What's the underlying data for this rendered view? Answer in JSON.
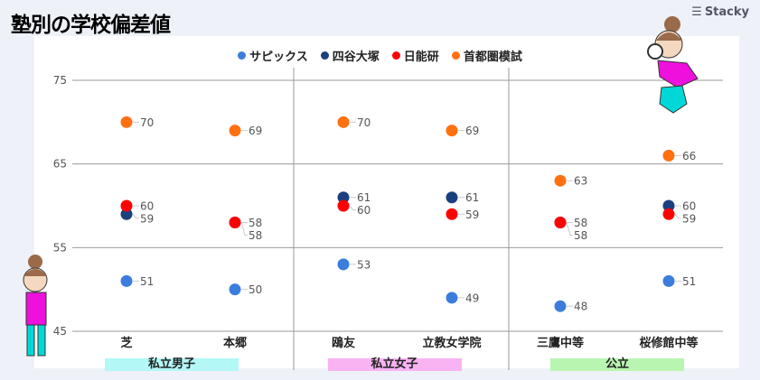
{
  "title": "塾別の学校偏差値",
  "logo": "Stacky",
  "chart_data": {
    "type": "scatter",
    "categories": [
      "芝",
      "本郷",
      "鴎友",
      "立教女学院",
      "三鷹中等",
      "桜修館中等"
    ],
    "groups": [
      {
        "label": "私立男子",
        "color": "#b3f7f7"
      },
      {
        "label": "私立女子",
        "color": "#f9b3f3"
      },
      {
        "label": "公立",
        "color": "#b8f5b0"
      }
    ],
    "ylim": [
      45,
      75
    ],
    "yticks": [
      45,
      55,
      65,
      75
    ],
    "grid": true,
    "legend_position": "top",
    "series": [
      {
        "name": "サピックス",
        "color": "#3b7ddd",
        "values": [
          51,
          50,
          53,
          49,
          48,
          51
        ]
      },
      {
        "name": "四谷大塚",
        "color": "#1a4080",
        "values": [
          59,
          58,
          61,
          61,
          58,
          60
        ]
      },
      {
        "name": "日能研",
        "color": "#ff0000",
        "values": [
          60,
          58,
          60,
          59,
          58,
          59
        ]
      },
      {
        "name": "首都圏模試",
        "color": "#ff7010",
        "values": [
          70,
          69,
          70,
          69,
          63,
          66
        ]
      }
    ]
  }
}
